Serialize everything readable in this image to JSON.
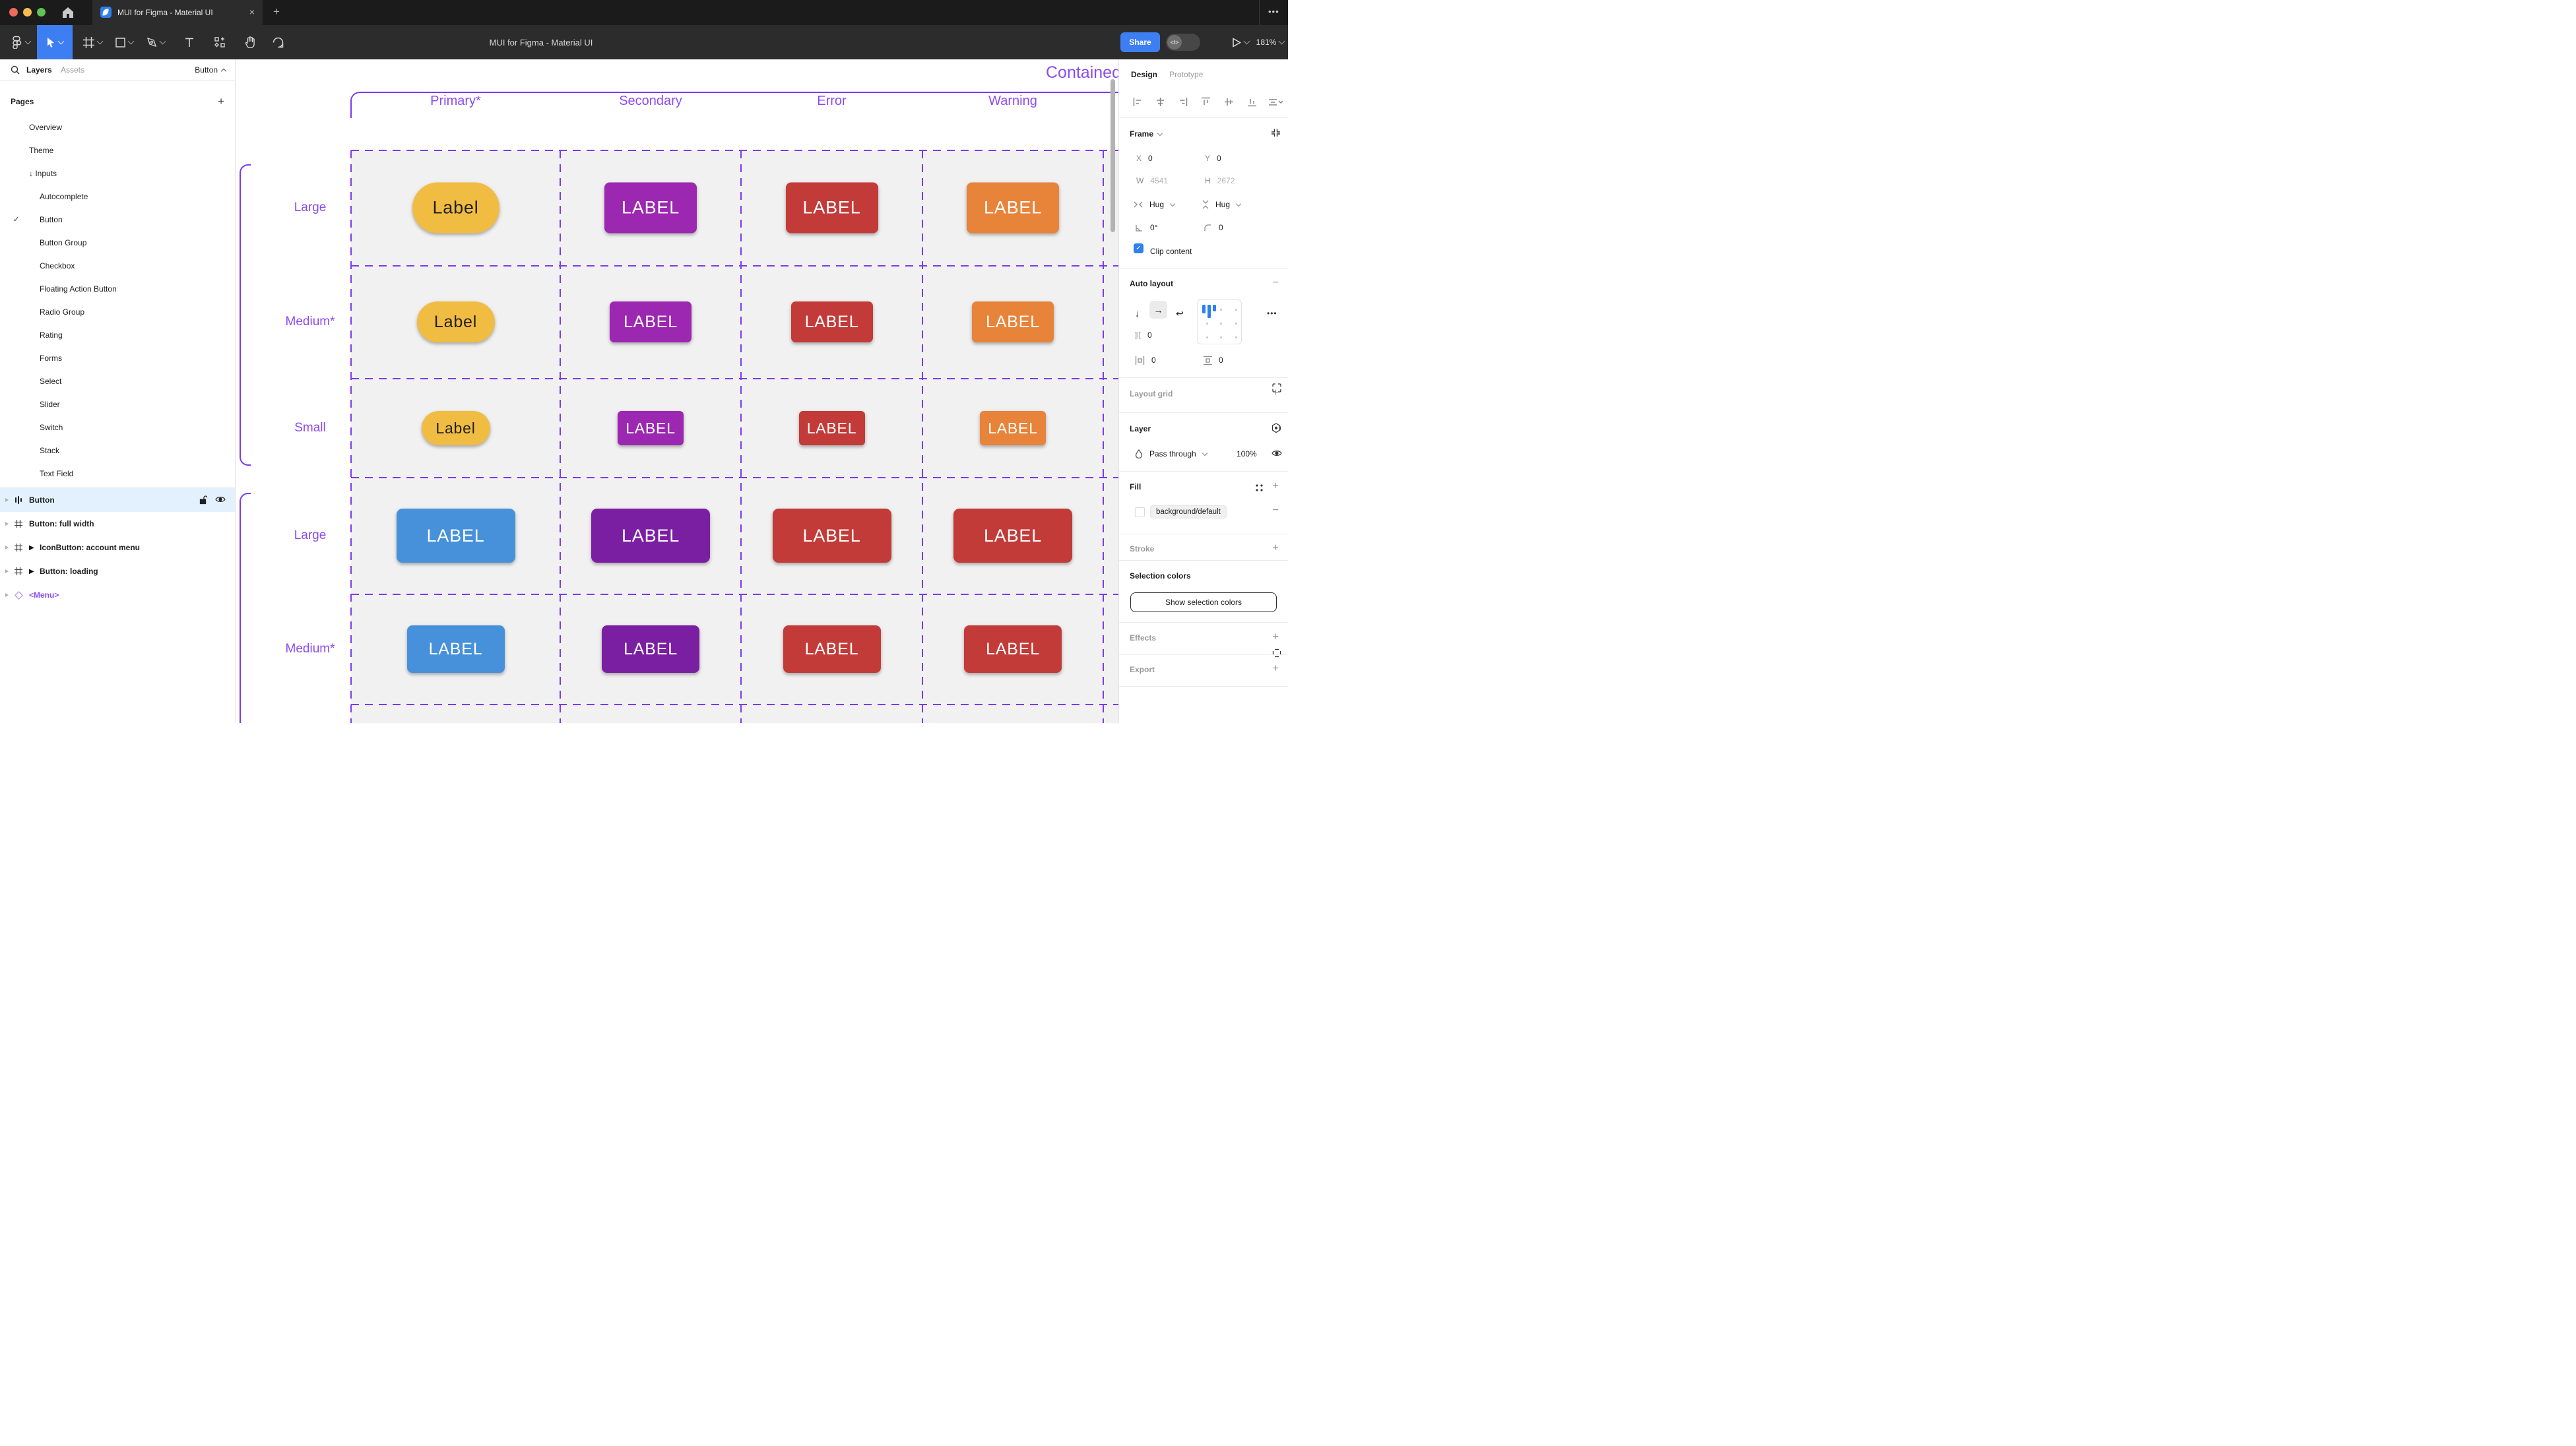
{
  "window": {
    "tab_title": "MUI for Figma - Material UI",
    "close_glyph": "×",
    "new_tab_glyph": "+",
    "more_glyph": "•••"
  },
  "toolbar": {
    "doc_title": "MUI for Figma - Material UI",
    "share_label": "Share",
    "dev_toggle_glyph": "</>",
    "zoom_level": "181%"
  },
  "sidebar": {
    "tabs": {
      "layers": "Layers",
      "assets": "Assets"
    },
    "selection_chip": "Button",
    "pages_label": "Pages",
    "add_glyph": "+",
    "pages": [
      {
        "label": "Overview",
        "lvl": 1
      },
      {
        "label": "Theme",
        "lvl": 1
      },
      {
        "label": "Inputs",
        "lvl": 1,
        "prefix": "↓ "
      },
      {
        "label": "Autocomplete",
        "lvl": 2
      },
      {
        "label": "Button",
        "lvl": 2,
        "checked": true
      },
      {
        "label": "Button Group",
        "lvl": 2
      },
      {
        "label": "Checkbox",
        "lvl": 2
      },
      {
        "label": "Floating Action Button",
        "lvl": 2
      },
      {
        "label": "Radio Group",
        "lvl": 2
      },
      {
        "label": "Rating",
        "lvl": 2
      },
      {
        "label": "Forms",
        "lvl": 2
      },
      {
        "label": "Select",
        "lvl": 2
      },
      {
        "label": "Slider",
        "lvl": 2
      },
      {
        "label": "Switch",
        "lvl": 2
      },
      {
        "label": "Stack",
        "lvl": 2
      },
      {
        "label": "Text Field",
        "lvl": 2
      }
    ],
    "layers": [
      {
        "label": "Button",
        "icon": "autolayout",
        "selected": true,
        "lock": true,
        "eye": true
      },
      {
        "label": "Button: full width",
        "icon": "frame"
      },
      {
        "label": "IconButton: account menu",
        "icon": "frame",
        "play": "▶"
      },
      {
        "label": "Button: loading",
        "icon": "frame",
        "play": "▶"
      },
      {
        "label": "<Menu>",
        "icon": "instance",
        "component": true
      }
    ]
  },
  "canvas": {
    "frame_title": "Contained",
    "column_headers": [
      "Primary*",
      "Secondary",
      "Error",
      "Warning"
    ],
    "row_labels": [
      "Large",
      "Medium*",
      "Small",
      "Large",
      "Medium*"
    ],
    "buttons": [
      [
        {
          "label": "Label",
          "bg": "#f1bc42",
          "fg": "#1f1f1f",
          "w": 132,
          "h": 77,
          "r": 39,
          "fs": 27
        },
        {
          "label": "LABEL",
          "bg": "#9c27b0",
          "fg": "#ffffff",
          "w": 140,
          "h": 77,
          "r": 8,
          "fs": 27
        },
        {
          "label": "LABEL",
          "bg": "#c23b38",
          "fg": "#ffffff",
          "w": 140,
          "h": 77,
          "r": 8,
          "fs": 27
        },
        {
          "label": "LABEL",
          "bg": "#e8833a",
          "fg": "#ffffff",
          "w": 140,
          "h": 77,
          "r": 8,
          "fs": 27
        }
      ],
      [
        {
          "label": "Label",
          "bg": "#f1bc42",
          "fg": "#1f1f1f",
          "w": 118,
          "h": 62,
          "r": 31,
          "fs": 25
        },
        {
          "label": "LABEL",
          "bg": "#9c27b0",
          "fg": "#ffffff",
          "w": 124,
          "h": 62,
          "r": 7,
          "fs": 25
        },
        {
          "label": "LABEL",
          "bg": "#c23b38",
          "fg": "#ffffff",
          "w": 124,
          "h": 62,
          "r": 7,
          "fs": 25
        },
        {
          "label": "LABEL",
          "bg": "#e8833a",
          "fg": "#ffffff",
          "w": 124,
          "h": 62,
          "r": 7,
          "fs": 25
        }
      ],
      [
        {
          "label": "Label",
          "bg": "#f1bc42",
          "fg": "#1f1f1f",
          "w": 104,
          "h": 52,
          "r": 26,
          "fs": 23
        },
        {
          "label": "LABEL",
          "bg": "#9c27b0",
          "fg": "#ffffff",
          "w": 100,
          "h": 52,
          "r": 6,
          "fs": 23
        },
        {
          "label": "LABEL",
          "bg": "#c23b38",
          "fg": "#ffffff",
          "w": 100,
          "h": 52,
          "r": 6,
          "fs": 23
        },
        {
          "label": "LABEL",
          "bg": "#e8833a",
          "fg": "#ffffff",
          "w": 100,
          "h": 52,
          "r": 6,
          "fs": 23
        }
      ],
      [
        {
          "label": "LABEL",
          "bg": "#4791db",
          "fg": "#ffffff",
          "w": 180,
          "h": 82,
          "r": 9,
          "fs": 27
        },
        {
          "label": "LABEL",
          "bg": "#7b1fa2",
          "fg": "#ffffff",
          "w": 180,
          "h": 82,
          "r": 9,
          "fs": 27
        },
        {
          "label": "LABEL",
          "bg": "#c23b38",
          "fg": "#ffffff",
          "w": 180,
          "h": 82,
          "r": 9,
          "fs": 27
        },
        {
          "label": "LABEL",
          "bg": "#c23b38",
          "fg": "#ffffff",
          "w": 180,
          "h": 82,
          "r": 9,
          "fs": 27
        }
      ],
      [
        {
          "label": "LABEL",
          "bg": "#4791db",
          "fg": "#ffffff",
          "w": 148,
          "h": 72,
          "r": 8,
          "fs": 25
        },
        {
          "label": "LABEL",
          "bg": "#7b1fa2",
          "fg": "#ffffff",
          "w": 148,
          "h": 72,
          "r": 8,
          "fs": 25
        },
        {
          "label": "LABEL",
          "bg": "#c23b38",
          "fg": "#ffffff",
          "w": 148,
          "h": 72,
          "r": 8,
          "fs": 25
        },
        {
          "label": "LABEL",
          "bg": "#c23b38",
          "fg": "#ffffff",
          "w": 148,
          "h": 72,
          "r": 8,
          "fs": 25
        }
      ]
    ]
  },
  "panel": {
    "tabs": {
      "design": "Design",
      "prototype": "Prototype"
    },
    "frame": {
      "label": "Frame",
      "x_label": "X",
      "x": "0",
      "y_label": "Y",
      "y": "0",
      "w_label": "W",
      "w": "4541",
      "h_label": "H",
      "h": "2672",
      "hug_h": "Hug",
      "hug_v": "Hug",
      "rotation": "0°",
      "corner_radius": "0",
      "clip_label": "Clip content",
      "check_glyph": "✓"
    },
    "auto_layout": {
      "label": "Auto layout",
      "remove_glyph": "−",
      "dir_down": "↓",
      "dir_right": "→",
      "dir_wrap": "↩",
      "gap": "0",
      "pad_h": "0",
      "pad_v": "0",
      "more_glyph": "•••"
    },
    "layout_grid": {
      "label": "Layout grid",
      "add_glyph": "+"
    },
    "layer": {
      "label": "Layer",
      "blend_mode": "Pass through",
      "opacity": "100%"
    },
    "fill": {
      "label": "Fill",
      "token": "background/default",
      "add_glyph": "+",
      "remove_glyph": "−"
    },
    "stroke": {
      "label": "Stroke",
      "add_glyph": "+"
    },
    "selection_colors": {
      "label": "Selection colors",
      "button_label": "Show selection colors"
    },
    "effects": {
      "label": "Effects",
      "add_glyph": "+"
    },
    "export": {
      "label": "Export",
      "add_glyph": "+"
    }
  },
  "colors": {
    "accent_blue": "#3d7ef2",
    "annotation_line_purple": "#7c3aec",
    "annotation_text_purple": "#8a4bf2",
    "selection_row_blue": "#e3f1ff",
    "checkbox_blue": "#2f80ed"
  }
}
